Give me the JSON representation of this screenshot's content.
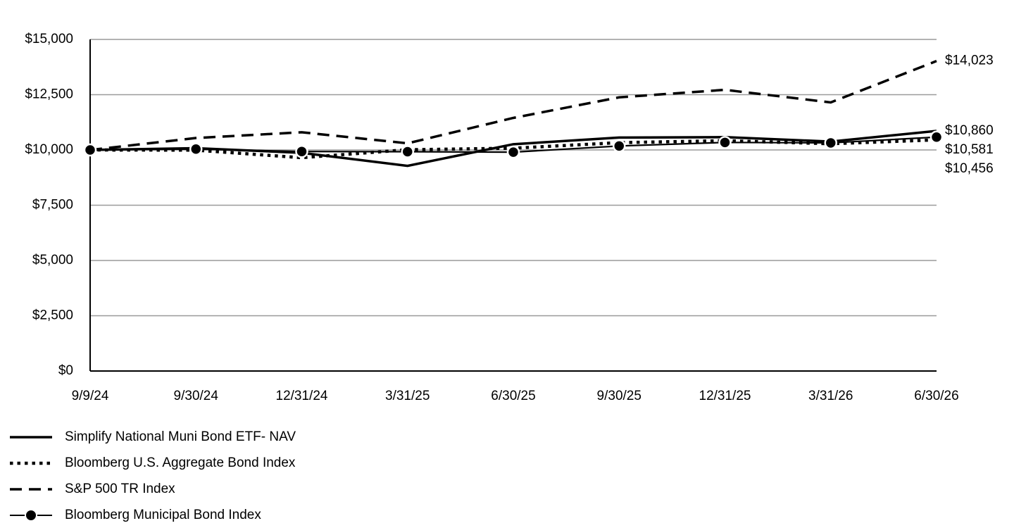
{
  "chart_data": {
    "type": "line",
    "title": "",
    "xlabel": "",
    "ylabel": "",
    "categories": [
      "9/9/24",
      "9/30/24",
      "12/31/24",
      "3/31/25",
      "6/30/25",
      "9/30/25",
      "12/31/25",
      "3/31/26",
      "6/30/26"
    ],
    "y_ticks": [
      "$0",
      "$2,500",
      "$5,000",
      "$7,500",
      "$10,000",
      "$12,500",
      "$15,000"
    ],
    "ylim": [
      0,
      15000
    ],
    "grid": true,
    "legend_position": "bottom-left",
    "series": [
      {
        "name": "Simplify National Muni Bond ETF- NAV",
        "style": "solid",
        "values": [
          10000,
          10080,
          9870,
          9280,
          10260,
          10560,
          10580,
          10380,
          10860
        ],
        "end_label": "$10,860"
      },
      {
        "name": "Bloomberg U.S. Aggregate Bond Index",
        "style": "dotted",
        "values": [
          10000,
          9990,
          9650,
          10010,
          10080,
          10330,
          10420,
          10280,
          10456
        ],
        "end_label": "$10,456"
      },
      {
        "name": "S&P 500 TR Index",
        "style": "dashed",
        "values": [
          10000,
          10540,
          10800,
          10300,
          11450,
          12380,
          12720,
          12150,
          14023
        ],
        "end_label": "$14,023"
      },
      {
        "name": "Bloomberg Municipal Bond Index",
        "style": "marker",
        "values": [
          10000,
          10040,
          9930,
          9920,
          9900,
          10180,
          10340,
          10320,
          10581
        ],
        "end_label": "$10,581"
      }
    ]
  }
}
